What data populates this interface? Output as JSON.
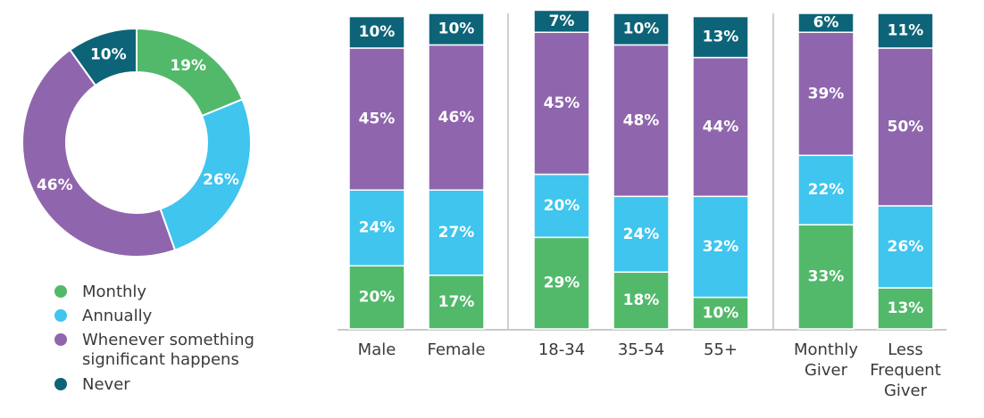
{
  "colors": {
    "Monthly": "#52b96a",
    "Annually": "#3fc5ee",
    "Whenever something significant happens": "#8f66ad",
    "Never": "#0d6478"
  },
  "chart_data": [
    {
      "type": "pie",
      "style": "donut",
      "series": [
        {
          "name": "Monthly",
          "value": 19,
          "label": "19%"
        },
        {
          "name": "Annually",
          "value": 26,
          "label": "26%"
        },
        {
          "name": "Whenever something significant happens",
          "value": 46,
          "label": "46%"
        },
        {
          "name": "Never",
          "value": 10,
          "label": "10%"
        }
      ],
      "legend": {
        "position": "bottom-left",
        "entries": [
          {
            "name": "Monthly",
            "lines": [
              "Monthly"
            ]
          },
          {
            "name": "Annually",
            "lines": [
              "Annually"
            ]
          },
          {
            "name": "Whenever something significant happens",
            "lines": [
              "Whenever something",
              "significant happens"
            ]
          },
          {
            "name": "Never",
            "lines": [
              "Never"
            ]
          }
        ]
      }
    },
    {
      "type": "bar",
      "stacked": true,
      "categories": [
        {
          "name": "Male",
          "lines": [
            "Male"
          ],
          "group": 0
        },
        {
          "name": "Female",
          "lines": [
            "Female"
          ],
          "group": 0
        },
        {
          "name": "18-34",
          "lines": [
            "18-34"
          ],
          "group": 1
        },
        {
          "name": "35-54",
          "lines": [
            "35-54"
          ],
          "group": 1
        },
        {
          "name": "55+",
          "lines": [
            "55+"
          ],
          "group": 1
        },
        {
          "name": "Monthly Giver",
          "lines": [
            "Monthly",
            "Giver"
          ],
          "group": 2
        },
        {
          "name": "Less Frequent Giver",
          "lines": [
            "Less",
            "Frequent",
            "Giver"
          ],
          "group": 2
        }
      ],
      "series": [
        {
          "name": "Monthly",
          "values": [
            20,
            17,
            29,
            18,
            10,
            33,
            13
          ]
        },
        {
          "name": "Annually",
          "values": [
            24,
            27,
            20,
            24,
            32,
            22,
            26
          ]
        },
        {
          "name": "Whenever something significant happens",
          "values": [
            45,
            46,
            45,
            48,
            44,
            39,
            50
          ]
        },
        {
          "name": "Never",
          "values": [
            10,
            10,
            7,
            10,
            13,
            6,
            11
          ]
        }
      ],
      "value_suffix": "%",
      "ylim": [
        0,
        100
      ],
      "grid": false
    }
  ]
}
